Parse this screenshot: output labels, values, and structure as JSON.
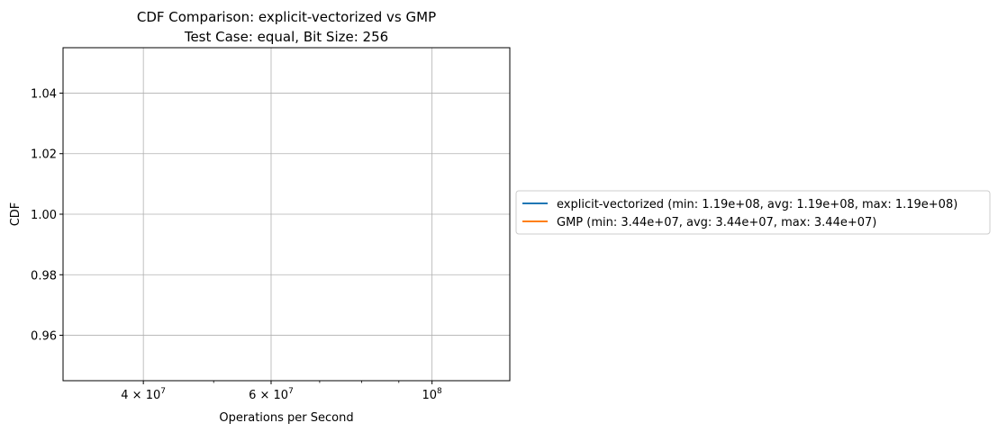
{
  "chart_data": {
    "type": "line",
    "title": "CDF Comparison: explicit-vectorized vs GMP",
    "subtitle": "Test Case: equal, Bit Size: 256",
    "xlabel": "Operations per Second",
    "ylabel": "CDF",
    "xscale": "log",
    "xlim": [
      31000000,
      128000000
    ],
    "ylim": [
      0.945,
      1.055
    ],
    "grid": true,
    "legend_position": "outside right",
    "x_ticks": [
      {
        "value": 40000000,
        "mantissa": "4",
        "base": "10",
        "exp": "7"
      },
      {
        "value": 60000000,
        "mantissa": "6",
        "base": "10",
        "exp": "7"
      },
      {
        "value": 100000000,
        "mantissa": "",
        "base": "10",
        "exp": "8"
      }
    ],
    "x_minor_ticks": [
      50000000,
      70000000,
      80000000,
      90000000
    ],
    "y_ticks": [
      "0.96",
      "0.98",
      "1.00",
      "1.02",
      "1.04"
    ],
    "series": [
      {
        "name": "explicit-vectorized (min: 1.19e+08, avg: 1.19e+08, max: 1.19e+08)",
        "color": "#1f77b4",
        "x": [
          119000000
        ],
        "y": [
          1.0
        ]
      },
      {
        "name": "GMP (min: 3.44e+07, avg: 3.44e+07, max: 3.44e+07)",
        "color": "#ff7f0e",
        "x": [
          34400000
        ],
        "y": [
          1.0
        ]
      }
    ]
  }
}
